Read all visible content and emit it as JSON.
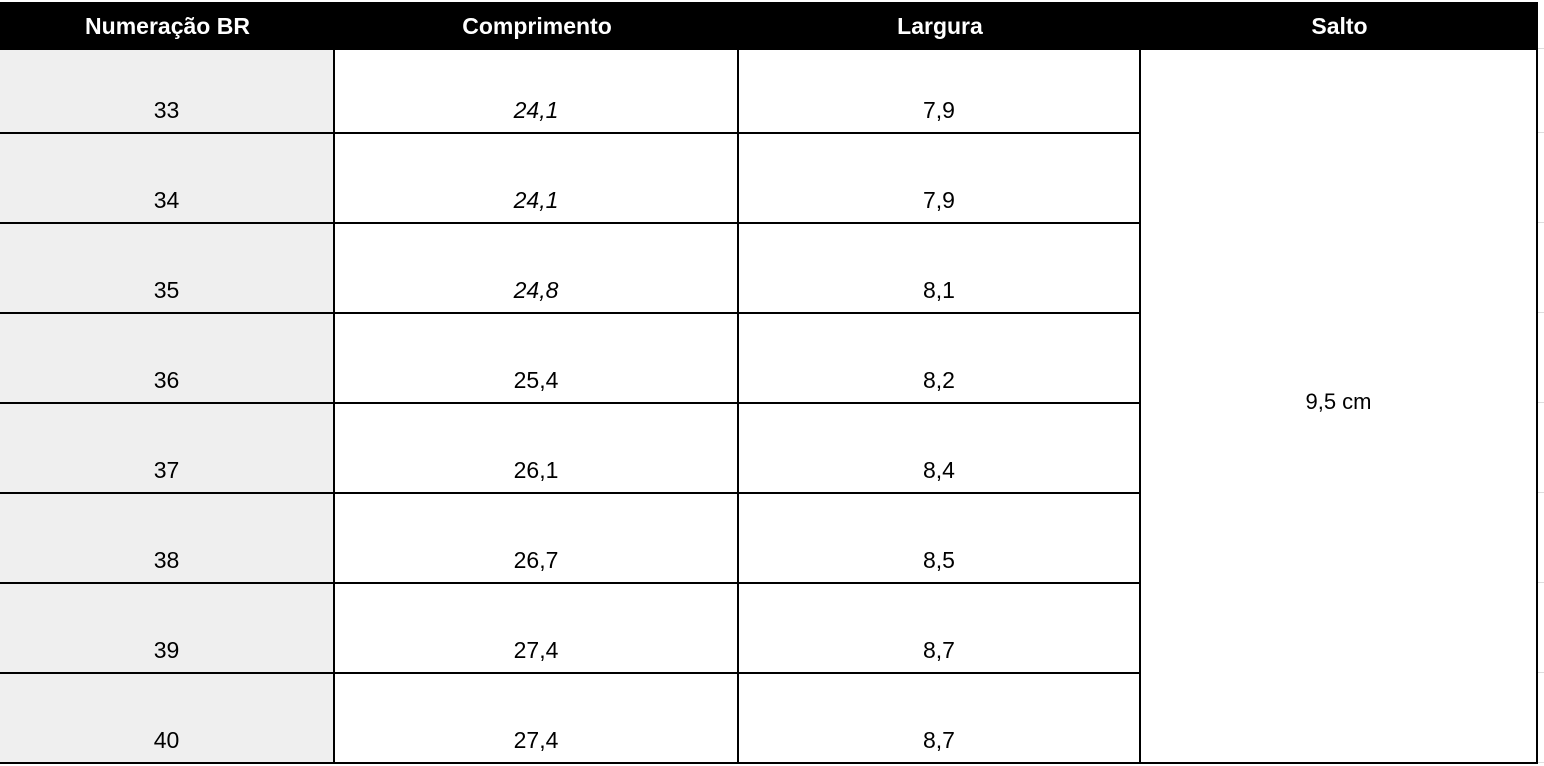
{
  "table": {
    "headers": [
      "Numeração BR",
      "Comprimento",
      "Largura",
      "Salto"
    ],
    "rows": [
      [
        "33",
        "24,1",
        "7,9"
      ],
      [
        "34",
        "24,1",
        "7,9"
      ],
      [
        "35",
        "24,8",
        "8,1"
      ],
      [
        "36",
        "25,4",
        "8,2"
      ],
      [
        "37",
        "26,1",
        "8,4"
      ],
      [
        "38",
        "26,7",
        "8,5"
      ],
      [
        "39",
        "27,4",
        "8,7"
      ],
      [
        "40",
        "27,4",
        "8,7"
      ]
    ],
    "salto": "9,5 cm"
  }
}
